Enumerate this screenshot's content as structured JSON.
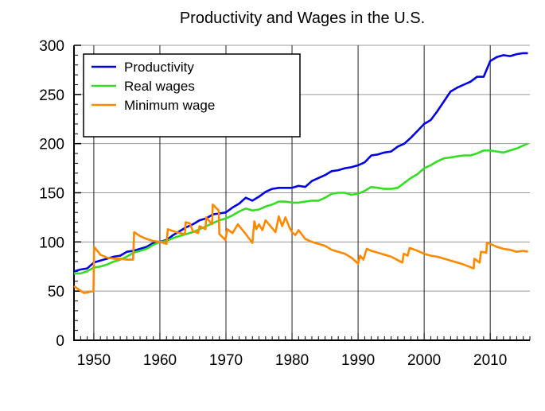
{
  "chart_data": {
    "type": "line",
    "title": "Productivity and Wages in the U.S.",
    "xlabel": "",
    "ylabel": "",
    "xlim": [
      1947,
      2016
    ],
    "ylim": [
      0,
      300
    ],
    "x_ticks": [
      1950,
      1960,
      1970,
      1980,
      1990,
      2000,
      2010
    ],
    "y_ticks": [
      0,
      50,
      100,
      150,
      200,
      250,
      300
    ],
    "grid": true,
    "legend_position": "top-left",
    "series": [
      {
        "name": "Productivity",
        "color": "#0000e6",
        "x": [
          1947,
          1948,
          1949,
          1950,
          1951,
          1952,
          1953,
          1954,
          1955,
          1956,
          1957,
          1958,
          1959,
          1960,
          1961,
          1962,
          1963,
          1964,
          1965,
          1966,
          1967,
          1968,
          1969,
          1970,
          1971,
          1972,
          1973,
          1974,
          1975,
          1976,
          1977,
          1978,
          1979,
          1980,
          1981,
          1982,
          1983,
          1984,
          1985,
          1986,
          1987,
          1988,
          1989,
          1990,
          1991,
          1992,
          1993,
          1994,
          1995,
          1996,
          1997,
          1998,
          1999,
          2000,
          2001,
          2002,
          2003,
          2004,
          2005,
          2006,
          2007,
          2008,
          2009,
          2010,
          2011,
          2012,
          2013,
          2014,
          2015,
          2015.7
        ],
        "y": [
          70,
          72,
          73,
          79,
          81,
          83,
          85,
          86,
          90,
          91,
          93,
          95,
          99,
          100,
          102,
          107,
          111,
          115,
          118,
          122,
          124,
          128,
          129,
          130,
          135,
          139,
          145,
          142,
          146,
          151,
          154,
          155,
          155,
          155,
          157,
          156,
          162,
          165,
          168,
          172,
          173,
          175,
          176,
          178,
          181,
          188,
          189,
          191,
          192,
          197,
          200,
          206,
          213,
          220,
          224,
          233,
          243,
          253,
          257,
          260,
          263,
          268,
          268,
          284,
          288,
          290,
          289,
          291,
          292,
          292
        ]
      },
      {
        "name": "Real wages",
        "color": "#33dd22",
        "x": [
          1947,
          1948,
          1949,
          1950,
          1951,
          1952,
          1953,
          1954,
          1955,
          1956,
          1957,
          1958,
          1959,
          1960,
          1961,
          1962,
          1963,
          1964,
          1965,
          1966,
          1967,
          1968,
          1969,
          1970,
          1971,
          1972,
          1973,
          1974,
          1975,
          1976,
          1977,
          1978,
          1979,
          1980,
          1981,
          1982,
          1983,
          1984,
          1985,
          1986,
          1987,
          1988,
          1989,
          1990,
          1991,
          1992,
          1993,
          1994,
          1995,
          1996,
          1997,
          1998,
          1999,
          2000,
          2001,
          2002,
          2003,
          2004,
          2005,
          2006,
          2007,
          2008,
          2009,
          2010,
          2011,
          2012,
          2013,
          2014,
          2015,
          2015.7
        ],
        "y": [
          68,
          68,
          70,
          74,
          75,
          77,
          80,
          82,
          85,
          89,
          91,
          93,
          97,
          100,
          101,
          104,
          106,
          108,
          110,
          113,
          116,
          119,
          122,
          124,
          127,
          131,
          134,
          132,
          133,
          136,
          138,
          141,
          141,
          140,
          140,
          141,
          142,
          142,
          145,
          149,
          150,
          150,
          148,
          149,
          152,
          156,
          155,
          154,
          154,
          155,
          160,
          165,
          169,
          175,
          178,
          182,
          185,
          186,
          187,
          188,
          188,
          190,
          193,
          193,
          192,
          191,
          193,
          195,
          198,
          200
        ]
      },
      {
        "name": "Minimum wage",
        "color": "#ff8800",
        "x": [
          1947,
          1948.5,
          1949.95,
          1950.05,
          1951,
          1952,
          1953,
          1954,
          1955,
          1955.95,
          1956.1,
          1957,
          1958,
          1959,
          1960,
          1961,
          1961.2,
          1962,
          1963,
          1963.8,
          1963.9,
          1964.5,
          1965,
          1965.8,
          1966,
          1966.9,
          1967.0,
          1967.9,
          1968.0,
          1968.9,
          1969.0,
          1969.9,
          1970.2,
          1971,
          1971.8,
          1973,
          1974,
          1974.3,
          1974.6,
          1975,
          1975.5,
          1976,
          1977.5,
          1978,
          1978.5,
          1979,
          1979.6,
          1980,
          1980.5,
          1981,
          1982,
          1983,
          1984,
          1985,
          1986,
          1987,
          1988,
          1989,
          1990.0,
          1990.3,
          1990.8,
          1991.3,
          1992,
          1993,
          1994,
          1995,
          1996.7,
          1996.9,
          1997.5,
          1997.8,
          1999,
          2000,
          2001,
          2002,
          2003,
          2004,
          2005,
          2006,
          2007.5,
          2007.6,
          2008.4,
          2008.6,
          2009.4,
          2009.5,
          2010,
          2011,
          2012,
          2013,
          2014,
          2015,
          2015.7
        ],
        "y": [
          55,
          48,
          50,
          95,
          87,
          84,
          83,
          83,
          82,
          82,
          110,
          106,
          103,
          101,
          100,
          98,
          113,
          111,
          109,
          108,
          120,
          119,
          111,
          109,
          116,
          113,
          125,
          118,
          138,
          132,
          108,
          102,
          113,
          109,
          118,
          108,
          99,
          121,
          113,
          118,
          112,
          122,
          110,
          126,
          116,
          125,
          115,
          110,
          107,
          112,
          103,
          100,
          98,
          96,
          92,
          90,
          88,
          84,
          78,
          86,
          82,
          93,
          91,
          89,
          87,
          85,
          79,
          88,
          86,
          94,
          91,
          88,
          86,
          85,
          83,
          81,
          79,
          77,
          73,
          83,
          79,
          90,
          89,
          99,
          98,
          95,
          93,
          92,
          90,
          91,
          90
        ]
      }
    ]
  }
}
